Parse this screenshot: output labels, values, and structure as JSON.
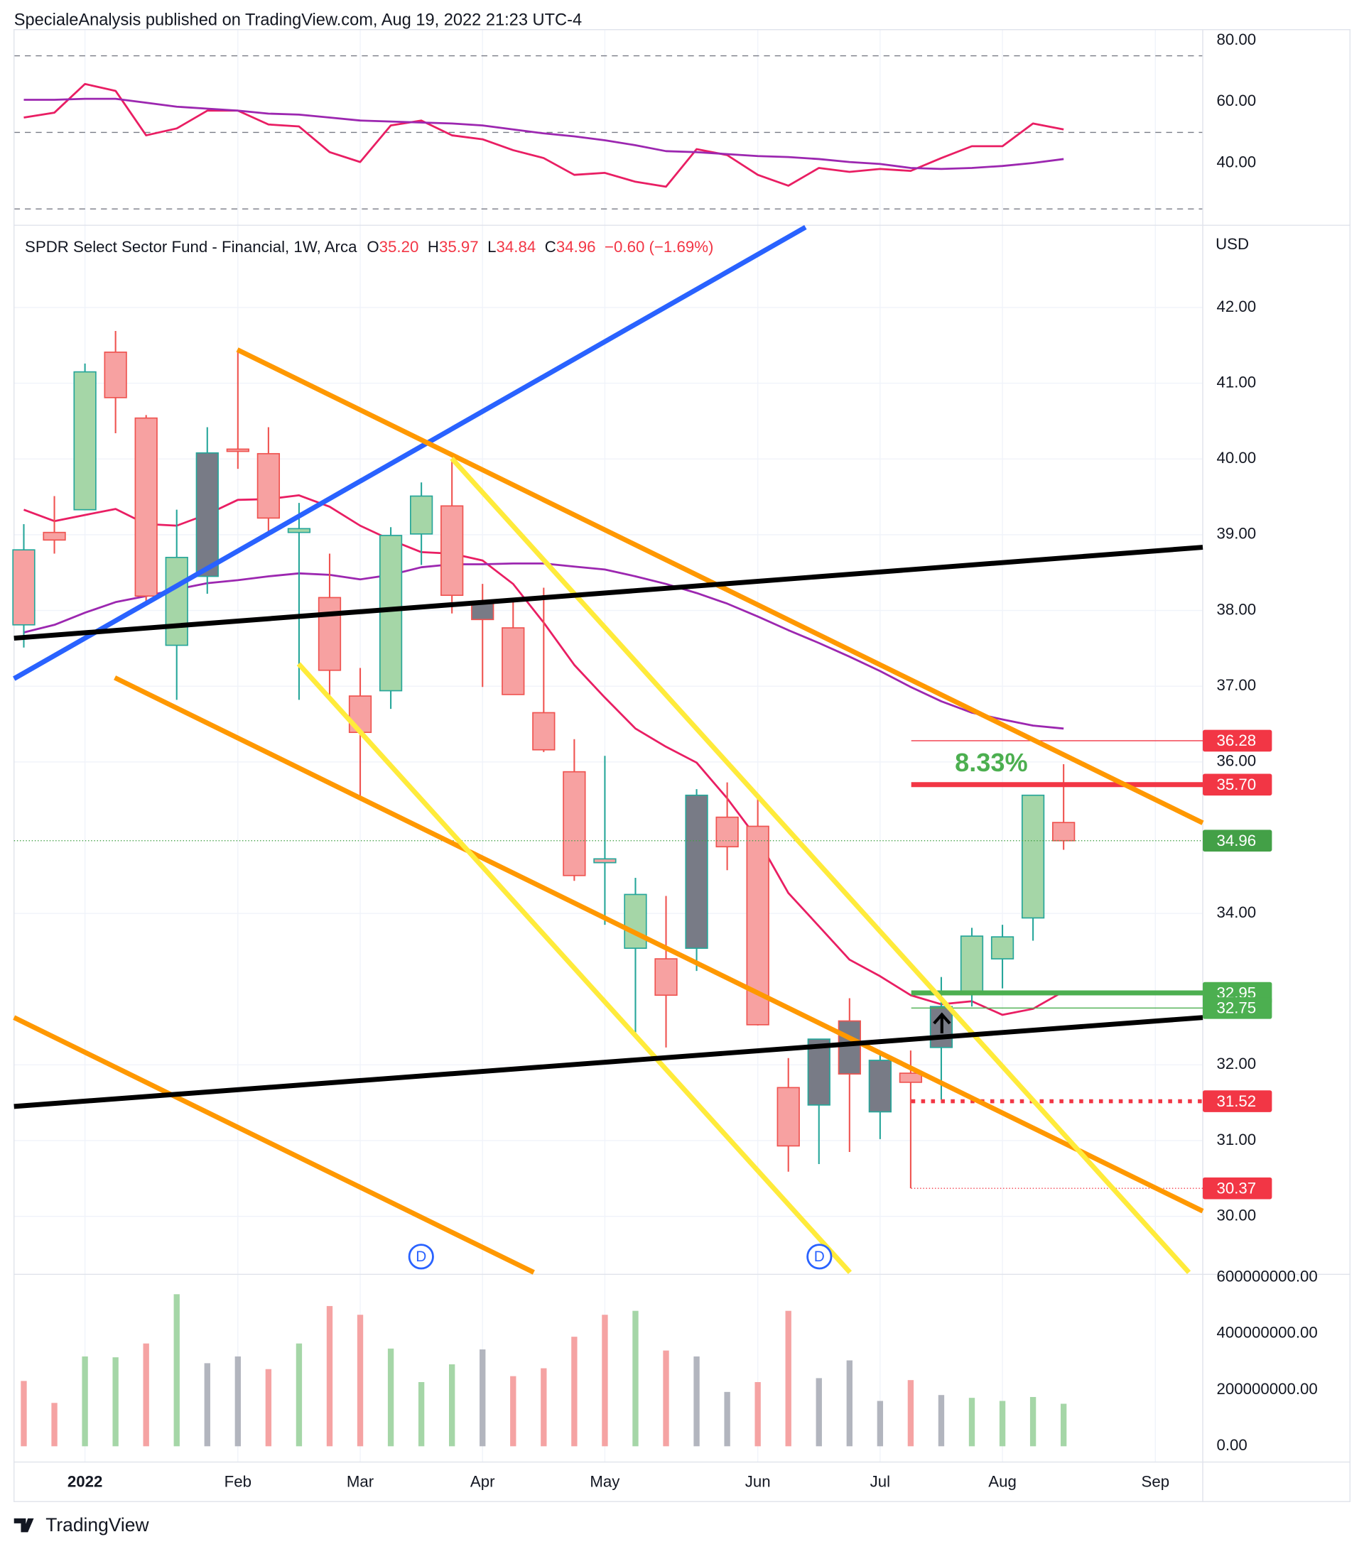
{
  "header": "SpecialeAnalysis published on TradingView.com, Aug 19, 2022 21:23 UTC-4",
  "brand": "TradingView",
  "chart_data": [
    {
      "type": "candlestick",
      "title": "SPDR Select Sector Fund - Financial, 1W, Arca",
      "ohlc_legend": [
        {
          "key": "O",
          "value": "35.20"
        },
        {
          "key": "H",
          "value": "35.97"
        },
        {
          "key": "L",
          "value": "34.84"
        },
        {
          "key": "C",
          "value": "34.96"
        }
      ],
      "change": "−0.60 (−1.69%)",
      "currency": "USD",
      "categories": [
        null,
        null,
        null,
        null,
        null,
        null,
        null,
        null,
        null,
        null,
        null,
        null,
        null,
        null,
        null,
        null,
        null,
        null,
        null,
        null,
        null,
        null,
        null,
        null,
        null,
        null,
        null,
        null,
        null,
        null,
        null,
        null,
        null,
        null,
        null
      ],
      "open": [
        37.81,
        38.93,
        39.33,
        41.41,
        40.54,
        37.54,
        38.45,
        40.13,
        40.07,
        39.08,
        38.17,
        36.87,
        36.94,
        39.01,
        39.38,
        38.11,
        37.77,
        36.65,
        35.87,
        34.72,
        33.54,
        33.4,
        33.54,
        35.27,
        35.15,
        31.7,
        31.47,
        32.58,
        31.38,
        31.89,
        32.23,
        32.97,
        33.4,
        33.94,
        35.2
      ],
      "high": [
        39.14,
        39.51,
        41.26,
        41.69,
        40.58,
        39.33,
        40.42,
        41.44,
        40.42,
        39.42,
        38.75,
        37.24,
        39.1,
        39.69,
        40.0,
        38.35,
        38.14,
        38.3,
        36.3,
        36.08,
        34.47,
        34.23,
        35.64,
        35.73,
        35.53,
        32.09,
        32.34,
        32.88,
        32.14,
        32.19,
        33.16,
        33.81,
        33.85,
        35.56,
        35.97
      ],
      "low": [
        37.51,
        38.75,
        39.33,
        40.34,
        38.1,
        36.82,
        38.22,
        39.87,
        39.01,
        36.82,
        36.82,
        35.52,
        36.7,
        38.6,
        37.96,
        36.99,
        36.89,
        36.13,
        34.43,
        33.85,
        32.43,
        32.23,
        33.24,
        34.57,
        32.52,
        30.59,
        30.69,
        30.85,
        31.02,
        30.37,
        31.54,
        32.77,
        33.01,
        33.64,
        34.84
      ],
      "close": [
        38.8,
        39.03,
        41.15,
        40.81,
        38.19,
        38.7,
        40.08,
        40.1,
        39.22,
        39.03,
        37.21,
        36.39,
        38.99,
        39.51,
        38.2,
        37.88,
        36.89,
        36.16,
        34.5,
        34.67,
        34.25,
        32.92,
        35.56,
        34.88,
        32.53,
        30.93,
        32.34,
        31.88,
        32.06,
        31.77,
        32.77,
        33.7,
        33.69,
        35.56,
        34.96
      ],
      "fills": [
        "#f7a1a1",
        "#f7a1a1",
        "#a5d6a7",
        "#f7a1a1",
        "#f7a1a1",
        "#a5d6a7",
        "#787b86",
        "#f7a1a1",
        "#f7a1a1",
        "#a5d6a7",
        "#f7a1a1",
        "#f7a1a1",
        "#a5d6a7",
        "#a5d6a7",
        "#f7a1a1",
        "#787b86",
        "#f7a1a1",
        "#f7a1a1",
        "#f7a1a1",
        "#f7a1a1",
        "#a5d6a7",
        "#f7a1a1",
        "#787b86",
        "#f7a1a1",
        "#f7a1a1",
        "#f7a1a1",
        "#787b86",
        "#787b86",
        "#787b86",
        "#f7a1a1",
        "#787b86",
        "#a5d6a7",
        "#a5d6a7",
        "#a5d6a7",
        "#f7a1a1"
      ],
      "strokes": [
        "#26a69a",
        "#ef5350",
        "#26a69a",
        "#ef5350",
        "#ef5350",
        "#26a69a",
        "#26a69a",
        "#ef5350",
        "#ef5350",
        "#26a69a",
        "#ef5350",
        "#ef5350",
        "#26a69a",
        "#26a69a",
        "#ef5350",
        "#ef5350",
        "#ef5350",
        "#ef5350",
        "#ef5350",
        "#26a69a",
        "#26a69a",
        "#ef5350",
        "#26a69a",
        "#ef5350",
        "#ef5350",
        "#ef5350",
        "#26a69a",
        "#ef5350",
        "#26a69a",
        "#ef5350",
        "#26a69a",
        "#26a69a",
        "#26a69a",
        "#26a69a",
        "#ef5350"
      ],
      "overlays": [
        {
          "color": "#e91e63",
          "values": [
            39.33,
            39.18,
            39.26,
            39.34,
            39.14,
            39.12,
            39.27,
            39.46,
            39.47,
            39.52,
            39.37,
            39.12,
            38.93,
            38.77,
            38.75,
            38.66,
            38.35,
            37.84,
            37.28,
            36.85,
            36.44,
            36.2,
            35.99,
            35.52,
            34.98,
            34.27,
            33.83,
            33.39,
            33.17,
            32.92,
            32.8,
            32.84,
            32.66,
            32.74,
            32.97
          ]
        },
        {
          "color": "#9c27b0",
          "values": [
            37.71,
            37.81,
            37.97,
            38.11,
            38.19,
            38.28,
            38.36,
            38.4,
            38.45,
            38.49,
            38.47,
            38.41,
            38.47,
            38.57,
            38.61,
            38.61,
            38.62,
            38.62,
            38.58,
            38.54,
            38.45,
            38.35,
            38.23,
            38.09,
            37.92,
            37.74,
            37.57,
            37.39,
            37.2,
            36.99,
            36.8,
            36.65,
            36.56,
            36.48,
            36.44
          ]
        }
      ],
      "levels": [
        {
          "value": 36.28,
          "label": "36.28",
          "color": "#f23645",
          "style": "thin"
        },
        {
          "value": 35.7,
          "label": "35.70",
          "color": "#f23645",
          "style": "thick"
        },
        {
          "value": 32.95,
          "label": "32.95",
          "color": "#4caf50",
          "style": "thick"
        },
        {
          "value": 32.75,
          "label": "32.75",
          "color": "#4caf50",
          "style": "thin"
        },
        {
          "value": 31.52,
          "label": "31.52",
          "color": "#f23645",
          "style": "dotted-thick"
        },
        {
          "value": 30.37,
          "label": "30.37",
          "color": "#f23645",
          "style": "dotted-thin"
        }
      ],
      "last_price_color": "#43a047",
      "annotation": "8.33%",
      "annotation_color": "#4caf50",
      "dividend_marker": "D",
      "xlim": [
        -0.32,
        38.55
      ],
      "ylim": [
        29.26,
        43.06
      ],
      "yticks": [
        {
          "value": 42,
          "label": "42.00"
        },
        {
          "value": 41,
          "label": "41.00"
        },
        {
          "value": 40,
          "label": "40.00"
        },
        {
          "value": 39,
          "label": "39.00"
        },
        {
          "value": 38,
          "label": "38.00"
        },
        {
          "value": 37,
          "label": "37.00"
        },
        {
          "value": 36,
          "label": "36.00"
        },
        {
          "value": 34,
          "label": "34.00"
        },
        {
          "value": 32,
          "label": "32.00"
        },
        {
          "value": 31,
          "label": "31.00"
        },
        {
          "value": 30,
          "label": "30.00"
        }
      ],
      "grid": true
    },
    {
      "type": "line",
      "series": [
        {
          "color": "#e91e63",
          "values": [
            54.84,
            56.45,
            65.81,
            63.55,
            49.03,
            51.29,
            57.1,
            57.1,
            52.58,
            51.94,
            43.55,
            40.32,
            52.26,
            53.87,
            49.03,
            47.74,
            44.19,
            41.61,
            36.13,
            36.77,
            33.87,
            32.26,
            44.52,
            42.58,
            36.13,
            32.58,
            38.39,
            37.1,
            38.06,
            37.42,
            41.61,
            45.48,
            45.48,
            52.9,
            50.97
          ]
        },
        {
          "color": "#9c27b0",
          "values": [
            60.65,
            60.65,
            60.97,
            60.97,
            59.68,
            58.39,
            57.74,
            57.1,
            56.13,
            55.81,
            54.84,
            53.87,
            53.55,
            53.23,
            52.9,
            52.26,
            50.97,
            49.68,
            48.71,
            47.42,
            45.81,
            43.87,
            43.55,
            42.9,
            42.26,
            41.94,
            41.29,
            40.32,
            39.68,
            38.39,
            38.06,
            38.39,
            39.03,
            40.0,
            41.29
          ]
        }
      ],
      "bands": [
        75,
        50,
        25
      ],
      "xlim": [
        -0.32,
        38.55
      ],
      "ylim": [
        19.68,
        83.55
      ],
      "yticks": [
        {
          "value": 80,
          "label": "80.00"
        },
        {
          "value": 60,
          "label": "60.00"
        },
        {
          "value": 40,
          "label": "40.00"
        }
      ],
      "grid": false
    },
    {
      "type": "bar",
      "values": [
        232000000,
        154000000,
        319000000,
        316000000,
        365000000,
        540000000,
        295000000,
        319000000,
        274000000,
        365000000,
        498000000,
        467000000,
        347000000,
        228000000,
        291000000,
        344000000,
        249000000,
        277000000,
        389000000,
        467000000,
        481000000,
        340000000,
        319000000,
        193000000,
        228000000,
        481000000,
        242000000,
        305000000,
        161000000,
        235000000,
        182000000,
        172000000,
        161000000,
        175000000,
        151000000
      ],
      "colors": [
        "#f5a3a3",
        "#f5a3a3",
        "#a5d6a7",
        "#a5d6a7",
        "#f5a3a3",
        "#a5d6a7",
        "#b2b5be",
        "#b2b5be",
        "#f5a3a3",
        "#a5d6a7",
        "#f5a3a3",
        "#f5a3a3",
        "#a5d6a7",
        "#a5d6a7",
        "#a5d6a7",
        "#b2b5be",
        "#f5a3a3",
        "#f5a3a3",
        "#f5a3a3",
        "#f5a3a3",
        "#a5d6a7",
        "#f5a3a3",
        "#b2b5be",
        "#b2b5be",
        "#f5a3a3",
        "#f5a3a3",
        "#b2b5be",
        "#b2b5be",
        "#b2b5be",
        "#f5a3a3",
        "#b2b5be",
        "#a5d6a7",
        "#a5d6a7",
        "#a5d6a7",
        "#a5d6a7"
      ],
      "xlim": [
        -0.32,
        38.55
      ],
      "ylim": [
        -56100000,
        610500000
      ],
      "yticks": [
        {
          "value": 600000000,
          "label": "600000000.00"
        },
        {
          "value": 400000000,
          "label": "400000000.00"
        },
        {
          "value": 200000000,
          "label": "200000000.00"
        },
        {
          "value": 0,
          "label": "0.00"
        }
      ],
      "xticks": [
        {
          "value": 2,
          "label": "2022"
        },
        {
          "value": 7,
          "label": "Feb"
        },
        {
          "value": 11,
          "label": "Mar"
        },
        {
          "value": 15,
          "label": "Apr"
        },
        {
          "value": 19,
          "label": "May"
        },
        {
          "value": 24,
          "label": "Jun"
        },
        {
          "value": 28,
          "label": "Jul"
        },
        {
          "value": 32,
          "label": "Aug"
        },
        {
          "value": 37,
          "label": "Sep"
        }
      ],
      "grid": false
    }
  ]
}
